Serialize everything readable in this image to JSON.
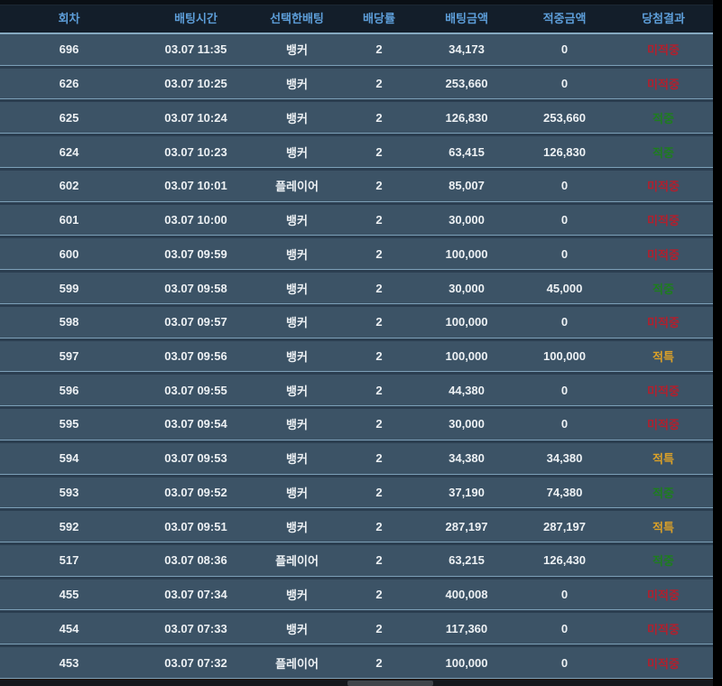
{
  "table": {
    "columns": [
      {
        "key": "round",
        "label": "회차"
      },
      {
        "key": "time",
        "label": "배팅시간"
      },
      {
        "key": "pick",
        "label": "선택한배팅"
      },
      {
        "key": "odds",
        "label": "배당률"
      },
      {
        "key": "bet",
        "label": "배팅금액"
      },
      {
        "key": "win",
        "label": "적중금액"
      },
      {
        "key": "result",
        "label": "당첨결과"
      }
    ],
    "rows": [
      {
        "round": "696",
        "time": "03.07 11:35",
        "pick": "뱅커",
        "odds": "2",
        "bet": "34,173",
        "win": "0",
        "result": "미적중",
        "result_type": "miss"
      },
      {
        "round": "626",
        "time": "03.07 10:25",
        "pick": "뱅커",
        "odds": "2",
        "bet": "253,660",
        "win": "0",
        "result": "미적중",
        "result_type": "miss"
      },
      {
        "round": "625",
        "time": "03.07 10:24",
        "pick": "뱅커",
        "odds": "2",
        "bet": "126,830",
        "win": "253,660",
        "result": "적중",
        "result_type": "hit"
      },
      {
        "round": "624",
        "time": "03.07 10:23",
        "pick": "뱅커",
        "odds": "2",
        "bet": "63,415",
        "win": "126,830",
        "result": "적중",
        "result_type": "hit"
      },
      {
        "round": "602",
        "time": "03.07 10:01",
        "pick": "플레이어",
        "odds": "2",
        "bet": "85,007",
        "win": "0",
        "result": "미적중",
        "result_type": "miss"
      },
      {
        "round": "601",
        "time": "03.07 10:00",
        "pick": "뱅커",
        "odds": "2",
        "bet": "30,000",
        "win": "0",
        "result": "미적중",
        "result_type": "miss"
      },
      {
        "round": "600",
        "time": "03.07 09:59",
        "pick": "뱅커",
        "odds": "2",
        "bet": "100,000",
        "win": "0",
        "result": "미적중",
        "result_type": "miss"
      },
      {
        "round": "599",
        "time": "03.07 09:58",
        "pick": "뱅커",
        "odds": "2",
        "bet": "30,000",
        "win": "45,000",
        "result": "적중",
        "result_type": "hit"
      },
      {
        "round": "598",
        "time": "03.07 09:57",
        "pick": "뱅커",
        "odds": "2",
        "bet": "100,000",
        "win": "0",
        "result": "미적중",
        "result_type": "miss"
      },
      {
        "round": "597",
        "time": "03.07 09:56",
        "pick": "뱅커",
        "odds": "2",
        "bet": "100,000",
        "win": "100,000",
        "result": "적특",
        "result_type": "special"
      },
      {
        "round": "596",
        "time": "03.07 09:55",
        "pick": "뱅커",
        "odds": "2",
        "bet": "44,380",
        "win": "0",
        "result": "미적중",
        "result_type": "miss"
      },
      {
        "round": "595",
        "time": "03.07 09:54",
        "pick": "뱅커",
        "odds": "2",
        "bet": "30,000",
        "win": "0",
        "result": "미적중",
        "result_type": "miss"
      },
      {
        "round": "594",
        "time": "03.07 09:53",
        "pick": "뱅커",
        "odds": "2",
        "bet": "34,380",
        "win": "34,380",
        "result": "적특",
        "result_type": "special"
      },
      {
        "round": "593",
        "time": "03.07 09:52",
        "pick": "뱅커",
        "odds": "2",
        "bet": "37,190",
        "win": "74,380",
        "result": "적중",
        "result_type": "hit"
      },
      {
        "round": "592",
        "time": "03.07 09:51",
        "pick": "뱅커",
        "odds": "2",
        "bet": "287,197",
        "win": "287,197",
        "result": "적특",
        "result_type": "special"
      },
      {
        "round": "517",
        "time": "03.07 08:36",
        "pick": "플레이어",
        "odds": "2",
        "bet": "63,215",
        "win": "126,430",
        "result": "적중",
        "result_type": "hit"
      },
      {
        "round": "455",
        "time": "03.07 07:34",
        "pick": "뱅커",
        "odds": "2",
        "bet": "400,008",
        "win": "0",
        "result": "미적중",
        "result_type": "miss"
      },
      {
        "round": "454",
        "time": "03.07 07:33",
        "pick": "뱅커",
        "odds": "2",
        "bet": "117,360",
        "win": "0",
        "result": "미적중",
        "result_type": "miss"
      },
      {
        "round": "453",
        "time": "03.07 07:32",
        "pick": "플레이어",
        "odds": "2",
        "bet": "100,000",
        "win": "0",
        "result": "미적중",
        "result_type": "miss"
      }
    ]
  },
  "colors": {
    "header_bg": "#131e2a",
    "header_text": "#5d9ed9",
    "row_bg": "#3c5366",
    "row_divider": "#7da0b8",
    "cell_text": "#edf1f4",
    "result_miss": "#b1202e",
    "result_hit": "#1e7d1e",
    "result_special": "#dba128"
  }
}
